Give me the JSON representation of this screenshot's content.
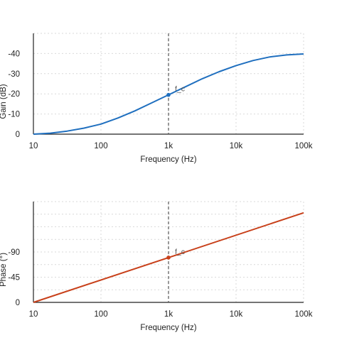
{
  "colors": {
    "gain_line": "#1f6fbf",
    "phase_line": "#c8401a",
    "grid": "#d9d9d9",
    "axis": "#222222",
    "marker_line": "#555555"
  },
  "chart_data": [
    {
      "type": "line",
      "x_scale": "log",
      "xlabel": "Frequency (Hz)",
      "ylabel": "Gain (dB)",
      "xlim": [
        10,
        100000
      ],
      "ylim": [
        0,
        -50
      ],
      "x_ticks": [
        10,
        100,
        1000,
        10000,
        100000
      ],
      "x_tick_labels": [
        "10",
        "100",
        "1k",
        "10k",
        "100k"
      ],
      "y_ticks": [
        0,
        -10,
        -20,
        -30,
        -40
      ],
      "y_tick_labels": [
        "0",
        "-10",
        "-20",
        "-30",
        "-40"
      ],
      "grid": true,
      "series": [
        {
          "x": [
            10,
            17.8,
            31.6,
            56.2,
            100,
            177.8,
            316.2,
            562.3,
            1000,
            1778,
            3162,
            5623,
            10000,
            17783,
            31623,
            56234,
            100000
          ],
          "y": [
            0,
            -0.5,
            -1.5,
            -3.0,
            -5.0,
            -8.0,
            -11.5,
            -15.5,
            -19.5,
            -23.5,
            -27.5,
            -31.0,
            -34.0,
            -36.5,
            -38.3,
            -39.3,
            -39.8
          ]
        }
      ],
      "marker": {
        "x": 1000,
        "y": -19.5,
        "label": "f_c"
      }
    },
    {
      "type": "line",
      "x_scale": "log",
      "xlabel": "Frequency (Hz)",
      "ylabel": "Phase (°)",
      "xlim": [
        10,
        100000
      ],
      "ylim": [
        0,
        -180
      ],
      "x_ticks": [
        10,
        100,
        1000,
        10000,
        100000
      ],
      "x_tick_labels": [
        "10",
        "100",
        "1k",
        "10k",
        "100k"
      ],
      "y_ticks": [
        0,
        -45,
        -90
      ],
      "y_tick_labels": [
        "0",
        "-45",
        "-90"
      ],
      "grid": true,
      "series": [
        {
          "x": [
            10,
            100000
          ],
          "y": [
            0,
            -160
          ]
        }
      ],
      "marker": {
        "x": 1000,
        "y": -80,
        "label": "f_c"
      }
    }
  ]
}
